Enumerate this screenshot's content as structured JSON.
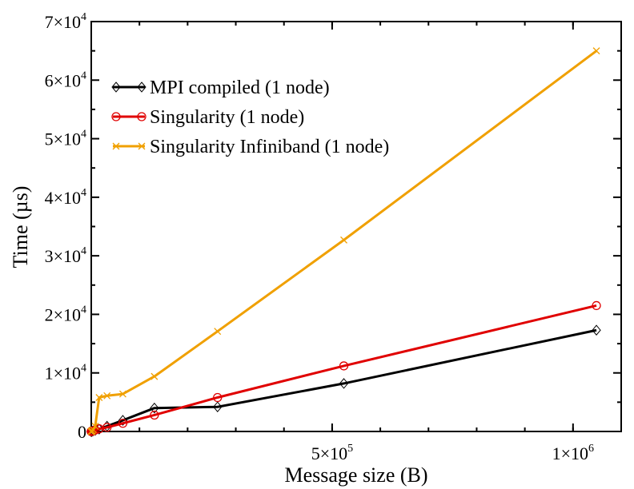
{
  "chart_data": {
    "type": "line",
    "title": "",
    "xlabel": "Message size (B)",
    "ylabel": "Time (µs)",
    "xlim": [
      0,
      1100000
    ],
    "ylim": [
      0,
      70000
    ],
    "grid": false,
    "legend_position": "top-left",
    "x_ticks": [
      {
        "value": 500000,
        "mantissa": "5×10",
        "exp": "5"
      },
      {
        "value": 1000000,
        "mantissa": "1×10",
        "exp": "6"
      }
    ],
    "y_ticks": [
      {
        "value": 0,
        "mantissa": "0",
        "exp": ""
      },
      {
        "value": 10000,
        "mantissa": "1×10",
        "exp": "4"
      },
      {
        "value": 20000,
        "mantissa": "2×10",
        "exp": "4"
      },
      {
        "value": 30000,
        "mantissa": "3×10",
        "exp": "4"
      },
      {
        "value": 40000,
        "mantissa": "4×10",
        "exp": "4"
      },
      {
        "value": 50000,
        "mantissa": "5×10",
        "exp": "4"
      },
      {
        "value": 60000,
        "mantissa": "6×10",
        "exp": "4"
      },
      {
        "value": 70000,
        "mantissa": "7×10",
        "exp": "4"
      }
    ],
    "x": [
      1,
      2,
      4,
      8,
      16,
      32,
      64,
      128,
      256,
      512,
      1024,
      2048,
      4096,
      8192,
      16384,
      32768,
      65536,
      131072,
      262144,
      524288,
      1048576
    ],
    "series": [
      {
        "name": "MPI compiled (1 node)",
        "color": "#000000",
        "marker": "diamond",
        "values": [
          2,
          2,
          2,
          2,
          2,
          3,
          3,
          5,
          8,
          14,
          25,
          50,
          100,
          200,
          400,
          900,
          1900,
          4000,
          4200,
          8200,
          17300
        ]
      },
      {
        "name": "Singularity (1 node)",
        "color": "#e00000",
        "marker": "circle",
        "values": [
          2,
          2,
          2,
          2,
          2,
          3,
          4,
          6,
          9,
          15,
          28,
          55,
          110,
          230,
          450,
          700,
          1400,
          2800,
          5800,
          11200,
          21500
        ]
      },
      {
        "name": "Singularity Infiniband (1 node)",
        "color": "#f0a000",
        "marker": "x",
        "values": [
          2,
          2,
          2,
          2,
          2,
          3,
          4,
          6,
          10,
          18,
          35,
          80,
          300,
          900,
          5800,
          6100,
          6400,
          9400,
          17100,
          32700,
          65000
        ]
      }
    ]
  }
}
